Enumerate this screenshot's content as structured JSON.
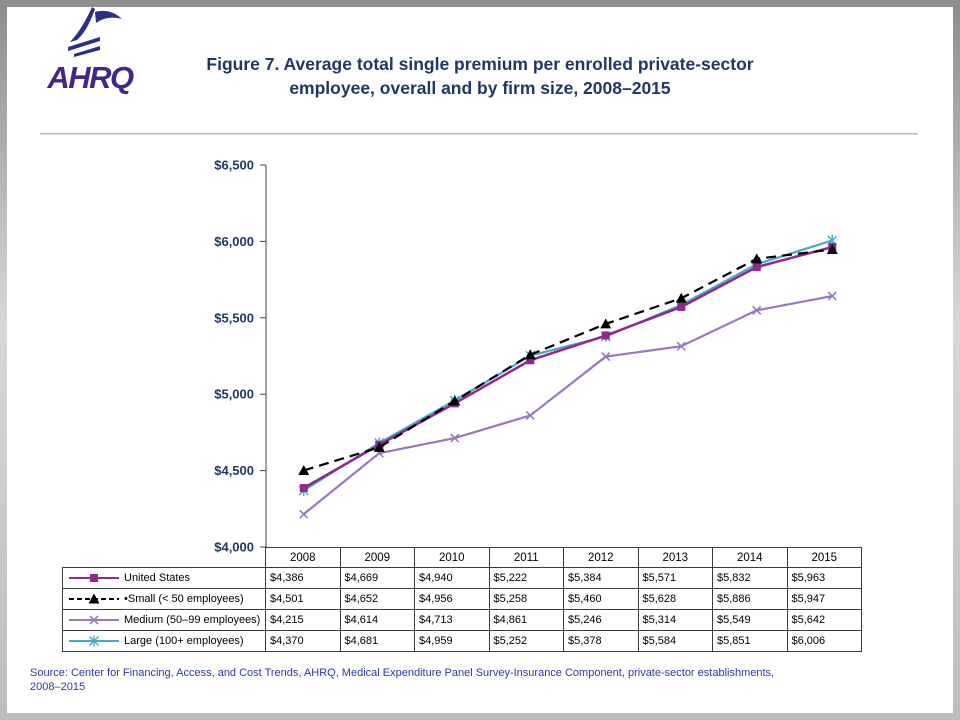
{
  "colors": {
    "title_text": "#1F3864",
    "axis_text": "#1F3864",
    "source_text": "#2B38A3",
    "table_border": "#3B3B3B",
    "logo_text": "#44268B"
  },
  "header": {
    "logo_text": "AHRQ",
    "title_line1": "Figure 7. Average total single premium per enrolled private-sector",
    "title_line2": "employee, overall and by firm size, 2008–2015"
  },
  "chart_data": {
    "type": "line",
    "title": "Figure 7. Average total single premium per enrolled private-sector employee, overall and by firm size, 2008–2015",
    "x": [
      2008,
      2009,
      2010,
      2011,
      2012,
      2013,
      2014,
      2015
    ],
    "xlabel": "",
    "ylabel": "",
    "ylim": [
      4000,
      6500
    ],
    "ytick_step": 500,
    "ytick_labels": [
      "$4,000",
      "$4,500",
      "$5,000",
      "$5,500",
      "$6,000",
      "$6,500"
    ],
    "grid": false,
    "legend_position": "table-left",
    "series": [
      {
        "name": "United States",
        "color": "#92278F",
        "marker": "square",
        "dash": "solid",
        "values": [
          4386,
          4669,
          4940,
          5222,
          5384,
          5571,
          5832,
          5963
        ]
      },
      {
        "name": "Small (< 50 employees)",
        "color": "#000000",
        "marker": "triangle",
        "dash": "dashed",
        "values": [
          4501,
          4652,
          4956,
          5258,
          5460,
          5628,
          5886,
          5947
        ]
      },
      {
        "name": "Medium (50–99 employees)",
        "color": "#9878BD",
        "marker": "x",
        "dash": "solid",
        "values": [
          4215,
          4614,
          4713,
          4861,
          5246,
          5314,
          5549,
          5642
        ]
      },
      {
        "name": "Large (100+ employees)",
        "color": "#44AAC8",
        "marker": "star",
        "dash": "solid",
        "values": [
          4370,
          4681,
          4959,
          5252,
          5378,
          5584,
          5851,
          6006
        ]
      }
    ]
  },
  "table": {
    "years": [
      "2008",
      "2009",
      "2010",
      "2011",
      "2012",
      "2013",
      "2014",
      "2015"
    ],
    "rows": [
      {
        "label": "United States",
        "values": [
          "$4,386",
          "$4,669",
          "$4,940",
          "$5,222",
          "$5,384",
          "$5,571",
          "$5,832",
          "$5,963"
        ]
      },
      {
        "label": "•Small (< 50 employees)",
        "values": [
          "$4,501",
          "$4,652",
          "$4,956",
          "$5,258",
          "$5,460",
          "$5,628",
          "$5,886",
          "$5,947"
        ]
      },
      {
        "label": "Medium (50–99 employees)",
        "values": [
          "$4,215",
          "$4,614",
          "$4,713",
          "$4,861",
          "$5,246",
          "$5,314",
          "$5,549",
          "$5,642"
        ]
      },
      {
        "label": "Large (100+ employees)",
        "values": [
          "$4,370",
          "$4,681",
          "$4,959",
          "$5,252",
          "$5,378",
          "$5,584",
          "$5,851",
          "$6,006"
        ]
      }
    ]
  },
  "footer": {
    "source_line1": "Source: Center for Financing, Access, and Cost Trends, AHRQ, Medical Expenditure Panel Survey-Insurance Component, private-sector establishments,",
    "source_line2": "2008–2015"
  }
}
